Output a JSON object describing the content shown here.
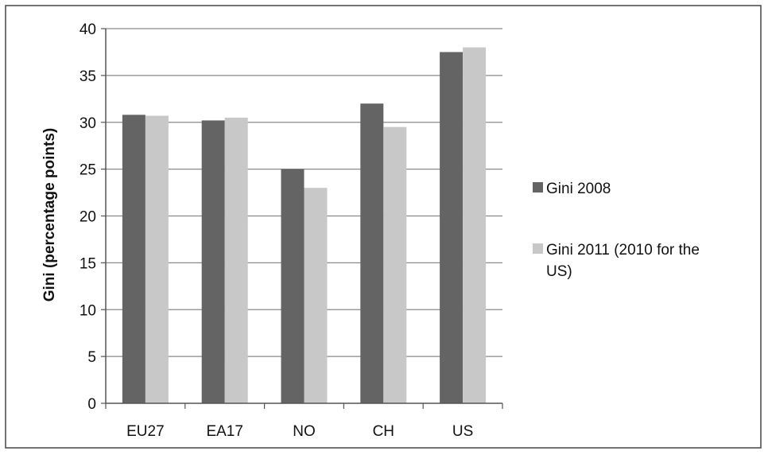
{
  "chart_data": {
    "type": "bar",
    "categories": [
      "EU27",
      "EA17",
      "NO",
      "CH",
      "US"
    ],
    "series": [
      {
        "name": "Gini 2008",
        "values": [
          30.8,
          30.2,
          25.0,
          32.0,
          37.5
        ],
        "color": "#646464"
      },
      {
        "name": "Gini 2011 (2010 for the US)",
        "legend_lines": [
          "Gini 2011 (2010 for the",
          "US)"
        ],
        "values": [
          30.7,
          30.5,
          23.0,
          29.5,
          38.0
        ],
        "color": "#c8c8c8"
      }
    ],
    "title": "",
    "xlabel": "",
    "ylabel": "Gini (percentage points)",
    "ylim": [
      0,
      40
    ],
    "yticks": [
      0,
      5,
      10,
      15,
      20,
      25,
      30,
      35,
      40
    ],
    "grid": true,
    "legend_position": "right"
  }
}
